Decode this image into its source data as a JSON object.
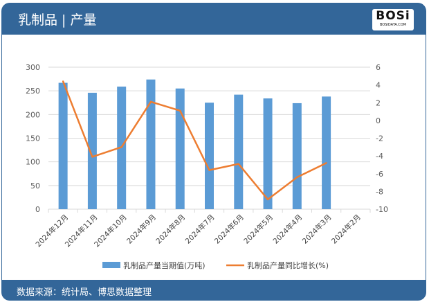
{
  "header": {
    "title": "乳制品 | 产量",
    "logo_text": "BOSi",
    "logo_sub": "BOSIDATA.COM"
  },
  "footer": {
    "source": "数据来源：统计局、博思数据整理"
  },
  "colors": {
    "bar": "#5b9bd5",
    "line": "#ed7d31",
    "header": "#336699"
  },
  "chart_data": {
    "type": "bar+line",
    "categories": [
      "2024年12月",
      "2024年11月",
      "2024年10月",
      "2024年9月",
      "2024年8月",
      "2024年7月",
      "2024年6月",
      "2024年5月",
      "2024年4月",
      "2024年3月",
      "2024年2月"
    ],
    "series": [
      {
        "name": "乳制品产量当期值(万吨)",
        "type": "bar",
        "axis": "left",
        "values": [
          267,
          246,
          259,
          274,
          255,
          225,
          242,
          234,
          224,
          238,
          null
        ]
      },
      {
        "name": "乳制品产量同比增长(%)",
        "type": "line",
        "axis": "right",
        "values": [
          4.4,
          -4.1,
          -3.0,
          2.1,
          1.1,
          -5.6,
          -4.9,
          -8.9,
          -6.4,
          -4.8,
          null
        ]
      }
    ],
    "ylim_left": [
      0,
      300
    ],
    "yticks_left": [
      0,
      50,
      100,
      150,
      200,
      250,
      300
    ],
    "ylim_right": [
      -10,
      6
    ],
    "yticks_right": [
      -10,
      -8,
      -6,
      -4,
      -2,
      0,
      2,
      4,
      6
    ],
    "grid": true,
    "legend": "bottom"
  }
}
